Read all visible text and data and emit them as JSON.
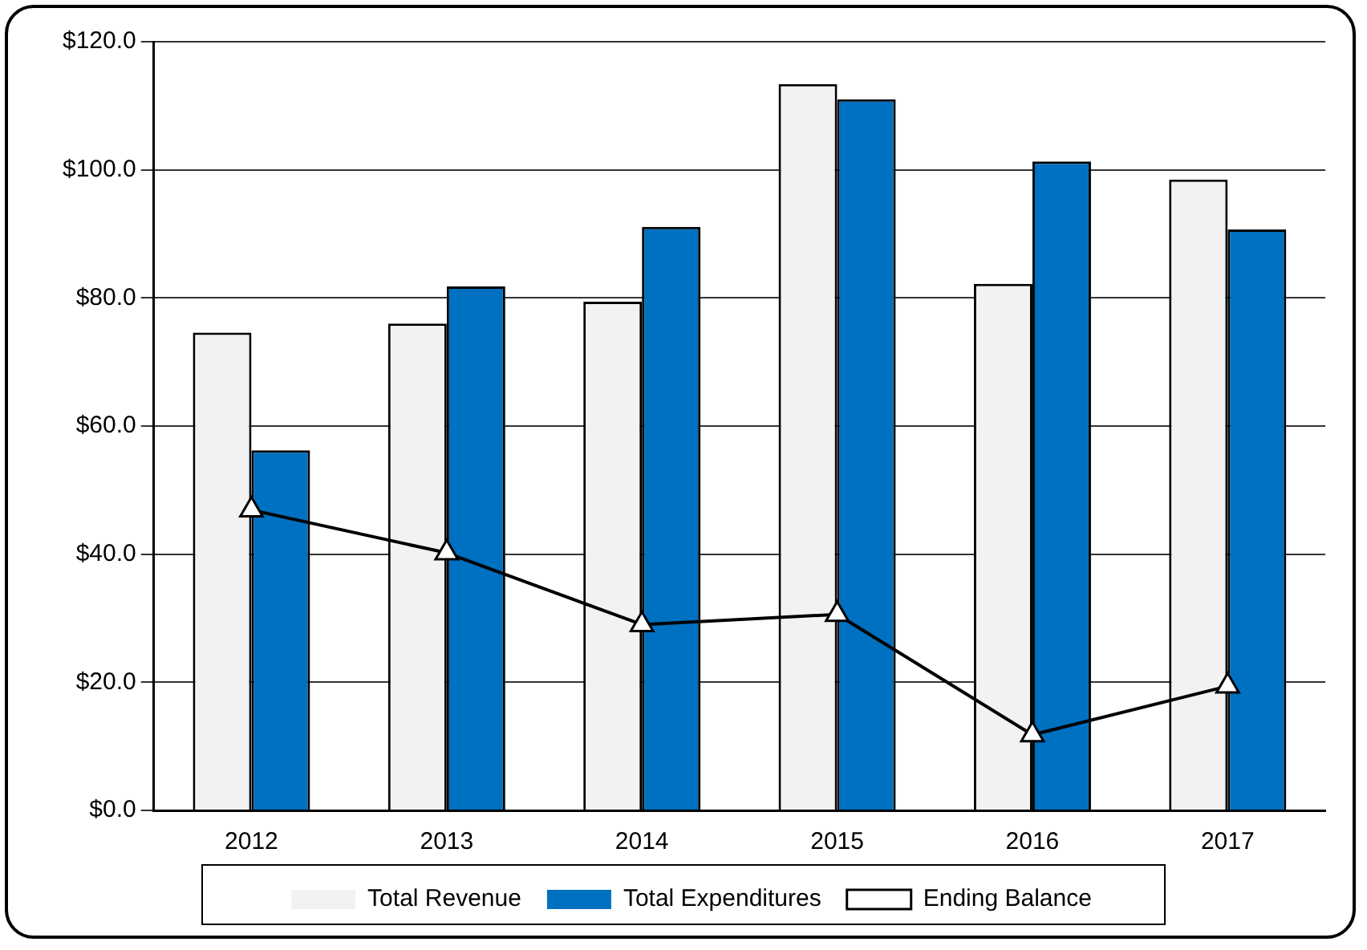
{
  "chart_data": {
    "type": "bar",
    "categories": [
      "2012",
      "2013",
      "2014",
      "2015",
      "2016",
      "2017"
    ],
    "series": [
      {
        "name": "Total Revenue",
        "color": "#f2f2f2",
        "values": [
          74.6,
          76.0,
          79.4,
          113.4,
          82.2,
          98.5
        ]
      },
      {
        "name": "Total Expenditures",
        "color": "#0070c0",
        "values": [
          56.2,
          81.8,
          91.1,
          111.0,
          101.3,
          90.7
        ]
      },
      {
        "name": "Ending Balance",
        "type": "line",
        "color": "#000000",
        "marker": "triangle",
        "values": [
          46.9,
          40.2,
          29.0,
          30.6,
          11.8,
          19.4
        ]
      }
    ],
    "ylim": [
      0,
      120
    ],
    "yticks": [
      {
        "value": 0,
        "label": "$0.0"
      },
      {
        "value": 20,
        "label": "$20.0"
      },
      {
        "value": 40,
        "label": "$40.0"
      },
      {
        "value": 60,
        "label": "$60.0"
      },
      {
        "value": 80,
        "label": "$80.0"
      },
      {
        "value": 100,
        "label": "$100.0"
      },
      {
        "value": 120,
        "label": "$120.0"
      }
    ],
    "grid": "y",
    "legend": "bottom"
  }
}
